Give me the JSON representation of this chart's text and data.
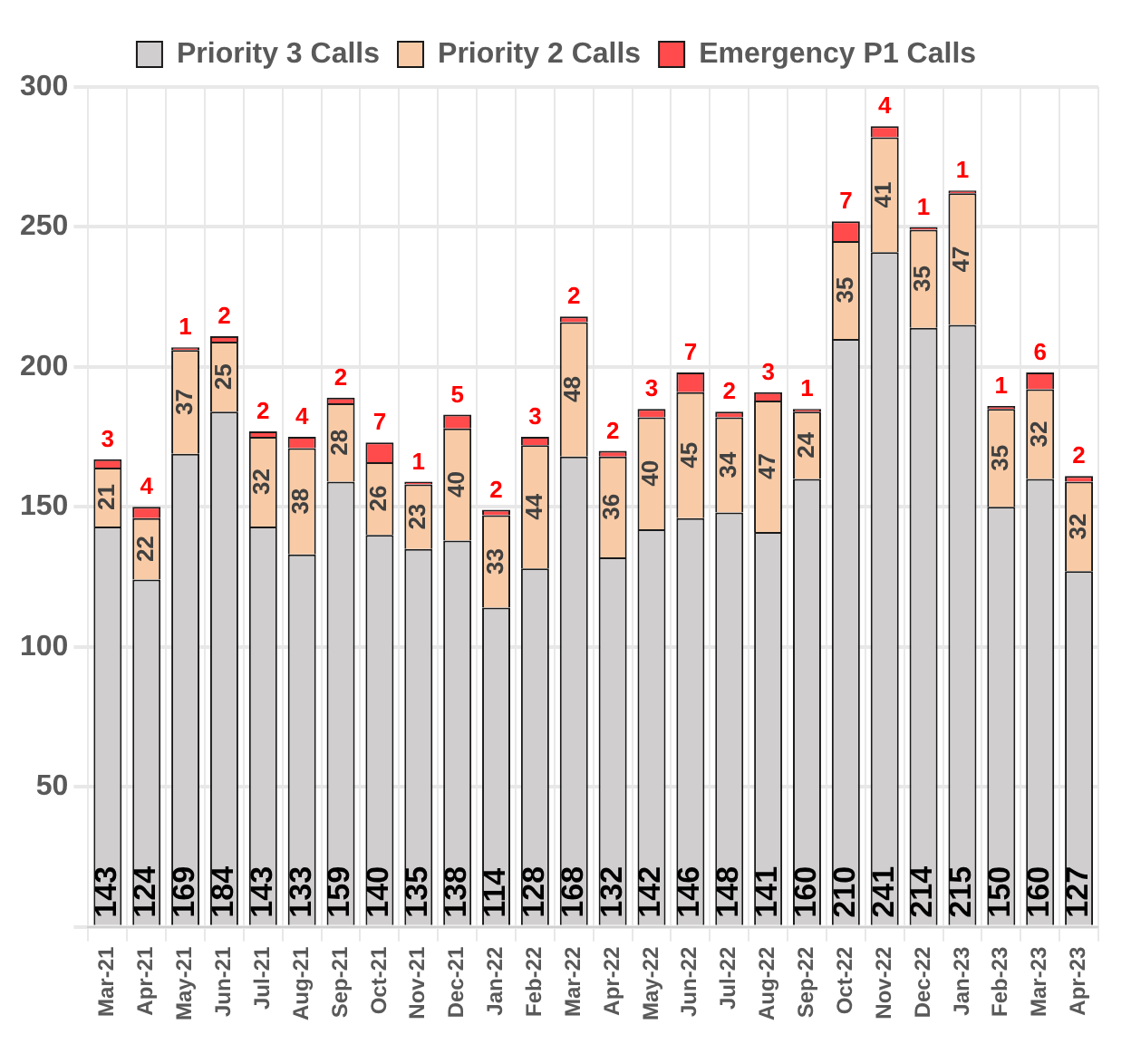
{
  "chart_data": {
    "type": "bar",
    "stacked": true,
    "categories": [
      "Mar-21",
      "Apr-21",
      "May-21",
      "Jun-21",
      "Jul-21",
      "Aug-21",
      "Sep-21",
      "Oct-21",
      "Nov-21",
      "Dec-21",
      "Jan-22",
      "Feb-22",
      "Mar-22",
      "Apr-22",
      "May-22",
      "Jun-22",
      "Jul-22",
      "Aug-22",
      "Sep-22",
      "Oct-22",
      "Nov-22",
      "Dec-22",
      "Jan-23",
      "Feb-23",
      "Mar-23",
      "Apr-23"
    ],
    "series": [
      {
        "name": "Priority 3 Calls",
        "color": "#d0cecf",
        "values": [
          143,
          124,
          169,
          184,
          143,
          133,
          159,
          140,
          135,
          138,
          114,
          128,
          168,
          132,
          142,
          146,
          148,
          141,
          160,
          210,
          241,
          214,
          215,
          150,
          160,
          127
        ]
      },
      {
        "name": "Priority 2 Calls",
        "color": "#f8cba6",
        "values": [
          21,
          22,
          37,
          25,
          32,
          38,
          28,
          26,
          23,
          40,
          33,
          44,
          48,
          36,
          40,
          45,
          34,
          47,
          24,
          35,
          41,
          35,
          47,
          35,
          32,
          32
        ]
      },
      {
        "name": "Emergency P1 Calls",
        "color": "#ff4b4b",
        "values": [
          3,
          4,
          1,
          2,
          2,
          4,
          2,
          7,
          1,
          5,
          2,
          3,
          2,
          2,
          3,
          7,
          2,
          3,
          1,
          7,
          4,
          1,
          1,
          1,
          6,
          2
        ]
      }
    ],
    "ylim": [
      0,
      300
    ],
    "yticks": [
      {
        "value": 0,
        "label": null
      },
      50,
      100,
      150,
      200,
      250,
      300
    ],
    "grid": true,
    "legend": "top",
    "data_labels": true
  }
}
